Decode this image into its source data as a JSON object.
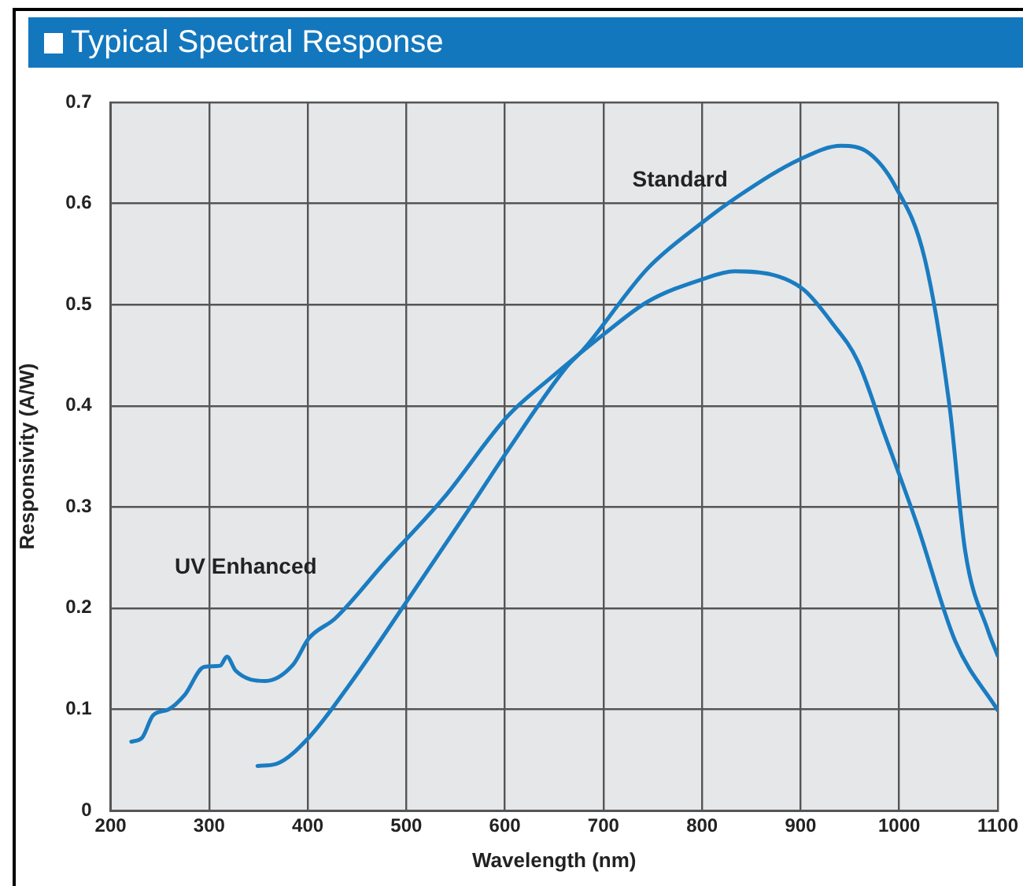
{
  "chart_data": {
    "type": "line",
    "title": "Typical Spectral Response",
    "xlabel": "Wavelength (nm)",
    "ylabel": "Responsivity (A/W)",
    "xlim": [
      200,
      1100
    ],
    "xticks": [
      200,
      300,
      400,
      500,
      600,
      700,
      800,
      900,
      1000,
      1100
    ],
    "ylim": [
      0,
      0.7
    ],
    "yticks": [
      0,
      0.1,
      0.2,
      0.3,
      0.4,
      0.5,
      0.6,
      0.7
    ],
    "grid": true,
    "legend": false,
    "marker": "none",
    "line_style": "solid",
    "series": [
      {
        "name": "UV Enhanced",
        "color": "#1a7cc1",
        "x": [
          221,
          232,
          243,
          259,
          275,
          295,
          311,
          318,
          327,
          357,
          385,
          401,
          428,
          478,
          538,
          603,
          647,
          702,
          745,
          800,
          833,
          877,
          904,
          931,
          958,
          985,
          1018,
          1057,
          1100
        ],
        "values": [
          0.068,
          0.072,
          0.094,
          0.1,
          0.114,
          0.142,
          0.143,
          0.152,
          0.138,
          0.128,
          0.144,
          0.17,
          0.19,
          0.245,
          0.309,
          0.39,
          0.428,
          0.472,
          0.503,
          0.525,
          0.533,
          0.528,
          0.514,
          0.483,
          0.444,
          0.372,
          0.283,
          0.167,
          0.099
        ]
      },
      {
        "name": "Standard",
        "color": "#1a7cc1",
        "x": [
          349,
          368,
          401,
          445,
          500,
          565,
          603,
          663,
          680,
          745,
          800,
          838,
          900,
          941,
          969,
          996,
          1026,
          1051,
          1067,
          1090,
          1100
        ],
        "values": [
          0.044,
          0.046,
          0.072,
          0.128,
          0.206,
          0.3,
          0.356,
          0.439,
          0.456,
          0.536,
          0.581,
          0.608,
          0.644,
          0.657,
          0.65,
          0.617,
          0.545,
          0.4,
          0.256,
          0.178,
          0.153
        ]
      }
    ]
  }
}
